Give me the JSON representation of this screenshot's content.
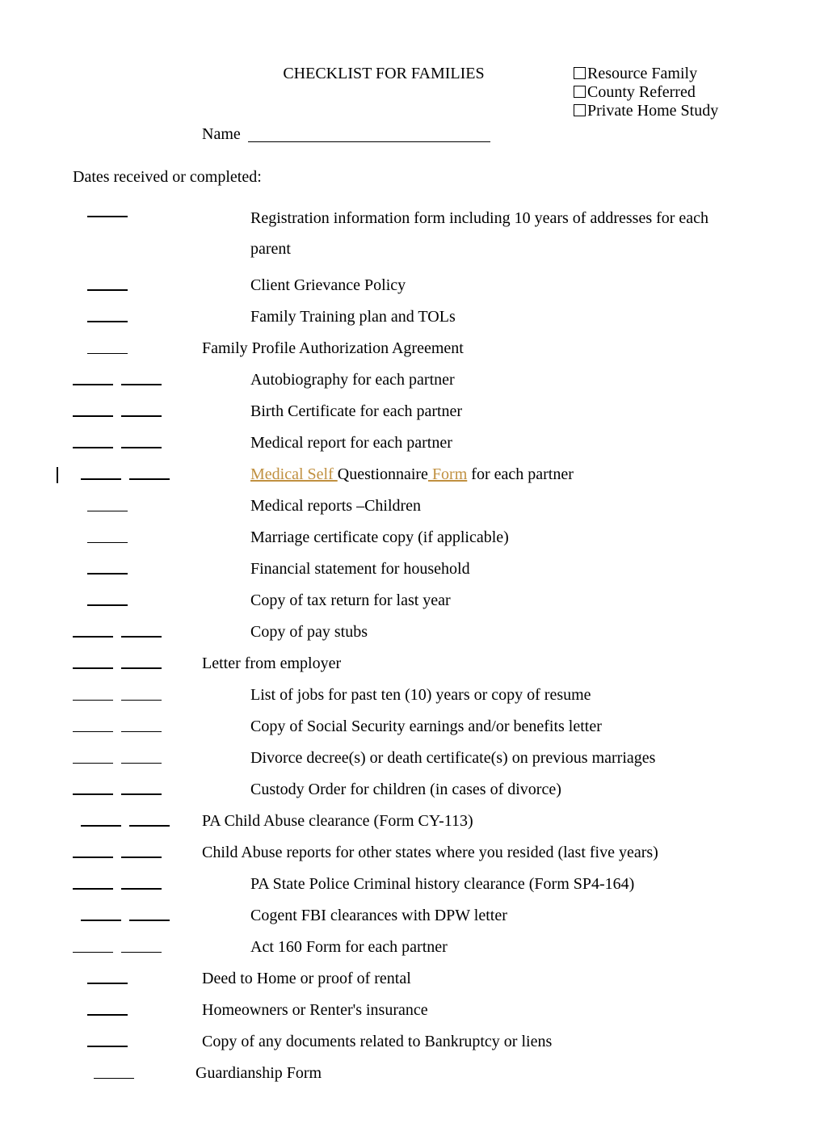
{
  "title": "CHECKLIST FOR FAMILIES",
  "type_options": [
    "Resource Family",
    "County Referred",
    "Private Home Study"
  ],
  "name_label": "Name",
  "dates_label": "Dates received or completed:",
  "items": [
    {
      "blanks": 1,
      "bold": true,
      "blanks_style": "center1",
      "text_indent": "in1",
      "hanging": true,
      "text": "Registration information form including 10 years of addresses for each parent"
    },
    {
      "blanks": 1,
      "bold": true,
      "blanks_style": "center1",
      "text_indent": "in1",
      "text": "Client Grievance Policy"
    },
    {
      "blanks": 1,
      "bold": true,
      "blanks_style": "center1",
      "text_indent": "in1",
      "text": "Family Training plan and TOLs"
    },
    {
      "blanks": 1,
      "bold": false,
      "blanks_style": "center1",
      "text_indent": "in0",
      "text": "Family Profile Authorization Agreement"
    },
    {
      "blanks": 2,
      "bold": true,
      "blanks_style": "",
      "text_indent": "in1",
      "text": "Autobiography for each partner"
    },
    {
      "blanks": 2,
      "bold": true,
      "blanks_style": "",
      "text_indent": "in1",
      "text": "Birth Certificate for each partner"
    },
    {
      "blanks": 2,
      "bold": true,
      "blanks_style": "",
      "text_indent": "in1",
      "text": "Medical report for each partner"
    },
    {
      "blanks": 2,
      "bold": true,
      "blanks_style": "indent1",
      "text_indent": "in1",
      "tracked": true,
      "change_bar": true,
      "text_parts": [
        {
          "t": "Medical Self ",
          "tracked": true
        },
        {
          "t": "Questionnaire",
          "tracked": false
        },
        {
          "t": " Form",
          "tracked": true
        },
        {
          "t": " for each partner",
          "tracked": false
        }
      ]
    },
    {
      "blanks": 1,
      "bold": false,
      "blanks_style": "center1",
      "text_indent": "in1",
      "text": "Medical reports –Children"
    },
    {
      "blanks": 1,
      "bold": false,
      "blanks_style": "center1",
      "text_indent": "in1",
      "text": "Marriage certificate copy (if applicable)"
    },
    {
      "blanks": 1,
      "bold": true,
      "blanks_style": "center1",
      "text_indent": "in1",
      "text": "Financial statement for household"
    },
    {
      "blanks": 1,
      "bold": true,
      "blanks_style": "center1",
      "text_indent": "in1",
      "text": "Copy of tax return for last year"
    },
    {
      "blanks": 2,
      "bold": true,
      "blanks_style": "",
      "text_indent": "in1",
      "text": "Copy of pay stubs"
    },
    {
      "blanks": 2,
      "bold": true,
      "blanks_style": "",
      "text_indent": "in0",
      "text": "Letter from employer"
    },
    {
      "blanks": 2,
      "bold": false,
      "blanks_style": "",
      "text_indent": "in1",
      "text": "List of jobs for past ten (10) years or copy of resume"
    },
    {
      "blanks": 2,
      "bold": false,
      "blanks_style": "",
      "text_indent": "in1",
      "text": "Copy of Social Security earnings and/or benefits letter"
    },
    {
      "blanks": 2,
      "bold": false,
      "blanks_style": "",
      "text_indent": "in1",
      "text": "Divorce decree(s) or death certificate(s) on previous marriages"
    },
    {
      "blanks": 2,
      "bold": true,
      "blanks_style": "",
      "text_indent": "in1",
      "text": "Custody Order for children (in cases of divorce)"
    },
    {
      "blanks": 2,
      "bold": true,
      "blanks_style": "indent1",
      "text_indent": "in0",
      "text": "PA Child Abuse clearance (Form CY-113)"
    },
    {
      "blanks": 2,
      "bold": true,
      "blanks_style": "",
      "text_indent": "in0",
      "text": "Child Abuse reports for other states where you resided (last five years)"
    },
    {
      "blanks": 2,
      "bold": true,
      "blanks_style": "",
      "text_indent": "in1",
      "text": "PA State Police Criminal history clearance (Form SP4-164)"
    },
    {
      "blanks": 2,
      "bold": true,
      "blanks_style": "indent1",
      "text_indent": "in1",
      "text": "Cogent FBI clearances with DPW letter"
    },
    {
      "blanks": 2,
      "bold": false,
      "blanks_style": "",
      "text_indent": "in1",
      "text": "Act 160 Form for each partner"
    },
    {
      "blanks": 1,
      "bold": true,
      "blanks_style": "center1",
      "text_indent": "in0",
      "text": "Deed to Home or proof of rental"
    },
    {
      "blanks": 1,
      "bold": true,
      "blanks_style": "center1",
      "text_indent": "in0",
      "text": "Homeowners or Renter's insurance"
    },
    {
      "blanks": 1,
      "bold": true,
      "blanks_style": "center1",
      "text_indent": "in0",
      "text": "Copy of any documents related to Bankruptcy or liens"
    },
    {
      "blanks": 1,
      "bold": false,
      "blanks_style": "indent2",
      "text_indent": "inminus",
      "text": "Guardianship Form"
    }
  ]
}
